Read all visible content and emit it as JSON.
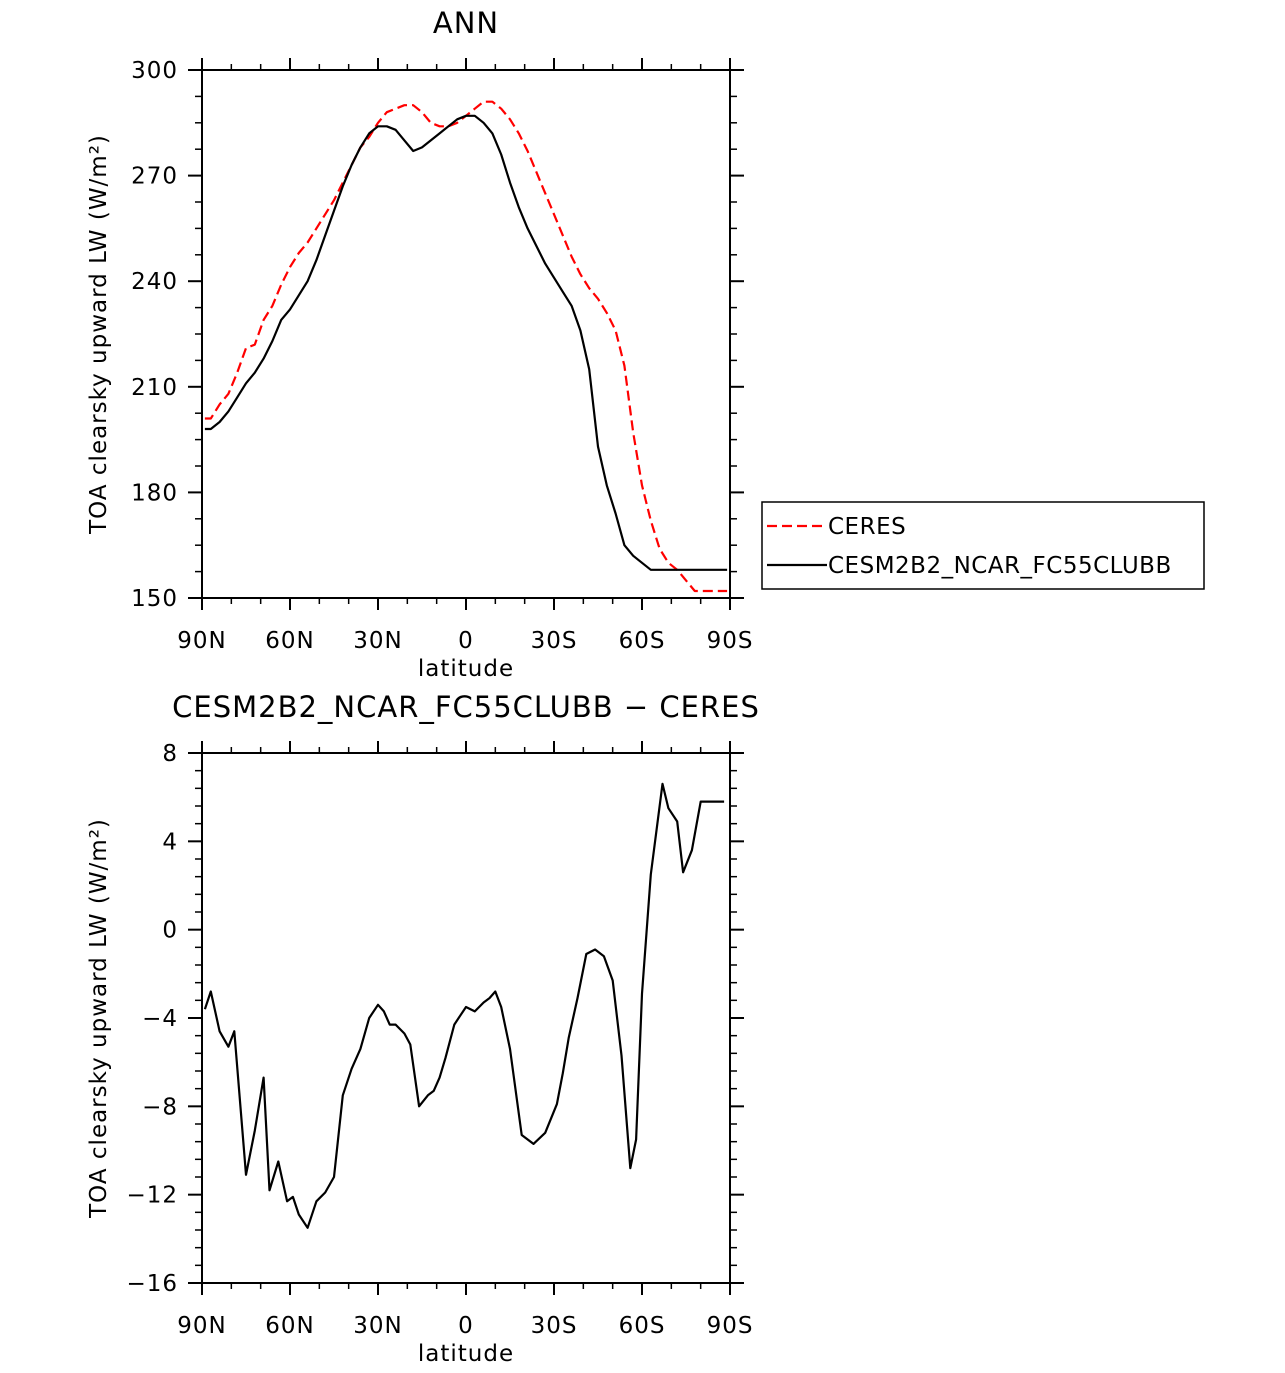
{
  "chart_data": [
    {
      "type": "line",
      "title": "ANN",
      "xlabel": "latitude",
      "ylabel": "TOA clearsky upward LW (W/m²)",
      "xlim": [
        90,
        -90
      ],
      "ylim": [
        150,
        300
      ],
      "xticks": [
        90,
        60,
        30,
        0,
        -30,
        -60,
        -90
      ],
      "xtick_labels": [
        "90N",
        "60N",
        "30N",
        "0",
        "30S",
        "60S",
        "90S"
      ],
      "yticks": [
        150,
        180,
        210,
        240,
        270,
        300
      ],
      "ytick_labels": [
        "150",
        "180",
        "210",
        "240",
        "270",
        "300"
      ],
      "legend_position": "right",
      "series": [
        {
          "name": "CERES",
          "color": "#ff0000",
          "dash": "dashed",
          "x": [
            89,
            87,
            84,
            81,
            78,
            75,
            72,
            69,
            66,
            63,
            60,
            57,
            54,
            51,
            48,
            45,
            42,
            39,
            36,
            33,
            30,
            27,
            24,
            21,
            18,
            15,
            12,
            9,
            6,
            3,
            0,
            -3,
            -6,
            -9,
            -12,
            -15,
            -18,
            -21,
            -24,
            -27,
            -30,
            -33,
            -36,
            -39,
            -42,
            -45,
            -48,
            -51,
            -54,
            -57,
            -60,
            -63,
            -66,
            -69,
            -72,
            -75,
            -78,
            -81,
            -84,
            -87,
            -89
          ],
          "y": [
            201,
            201,
            205,
            208,
            214,
            221,
            222,
            229,
            233,
            239,
            244,
            248,
            251,
            255,
            259,
            263,
            268,
            273,
            278,
            281,
            285,
            288,
            289,
            290,
            290,
            288,
            285,
            284,
            284,
            285,
            287,
            289,
            291,
            291,
            289,
            286,
            282,
            277,
            271,
            265,
            259,
            253,
            247,
            242,
            238,
            235,
            231,
            226,
            216,
            197,
            182,
            172,
            164,
            160,
            158,
            155,
            152,
            152,
            152,
            152,
            152
          ]
        },
        {
          "name": "CESM2B2_NCAR_FC55CLUBB",
          "color": "#000000",
          "dash": "solid",
          "x": [
            89,
            87,
            84,
            81,
            78,
            75,
            72,
            69,
            66,
            63,
            60,
            57,
            54,
            51,
            48,
            45,
            42,
            39,
            36,
            33,
            30,
            27,
            24,
            21,
            18,
            15,
            12,
            9,
            6,
            3,
            0,
            -3,
            -6,
            -9,
            -12,
            -15,
            -18,
            -21,
            -24,
            -27,
            -30,
            -33,
            -36,
            -39,
            -42,
            -45,
            -48,
            -51,
            -54,
            -57,
            -60,
            -63,
            -66,
            -69,
            -72,
            -75,
            -78,
            -81,
            -84,
            -87,
            -89
          ],
          "y": [
            198,
            198,
            200,
            203,
            207,
            211,
            214,
            218,
            223,
            229,
            232,
            236,
            240,
            246,
            253,
            260,
            267,
            273,
            278,
            282,
            284,
            284,
            283,
            280,
            277,
            278,
            280,
            282,
            284,
            286,
            287,
            287,
            285,
            282,
            276,
            268,
            261,
            255,
            250,
            245,
            241,
            237,
            233,
            226,
            215,
            193,
            182,
            174,
            165,
            162,
            160,
            158,
            158,
            158,
            158,
            158,
            158,
            158,
            158,
            158,
            158
          ]
        }
      ]
    },
    {
      "type": "line",
      "title": "CESM2B2_NCAR_FC55CLUBB − CERES",
      "xlabel": "latitude",
      "ylabel": "TOA clearsky upward LW (W/m²)",
      "xlim": [
        90,
        -90
      ],
      "ylim": [
        -16,
        8
      ],
      "xticks": [
        90,
        60,
        30,
        0,
        -30,
        -60,
        -90
      ],
      "xtick_labels": [
        "90N",
        "60N",
        "30N",
        "0",
        "30S",
        "60S",
        "90S"
      ],
      "yticks": [
        -16,
        -12,
        -8,
        -4,
        0,
        4,
        8
      ],
      "ytick_labels": [
        "−16",
        "−12",
        "−8",
        "−4",
        "0",
        "4",
        "8"
      ],
      "series": [
        {
          "color": "#000000",
          "dash": "solid",
          "x": [
            89,
            87,
            84,
            81,
            79,
            75,
            72,
            69,
            67,
            64,
            61,
            59,
            57,
            54,
            51,
            48,
            45,
            42,
            39,
            36,
            33,
            30,
            28,
            26,
            24,
            21,
            19,
            16,
            13,
            11,
            9,
            7,
            4,
            2,
            0,
            -3,
            -6,
            -8,
            -10,
            -12,
            -15,
            -19,
            -23,
            -27,
            -31,
            -33,
            -35,
            -38,
            -41,
            -44,
            -47,
            -50,
            -53,
            -56,
            -58,
            -60,
            -63,
            -67,
            -69,
            -72,
            -74,
            -77,
            -80,
            -83,
            -86,
            -88
          ],
          "y": [
            -3.6,
            -2.8,
            -4.6,
            -5.3,
            -4.6,
            -11.1,
            -9.1,
            -6.7,
            -11.8,
            -10.5,
            -12.3,
            -12.1,
            -12.9,
            -13.5,
            -12.3,
            -11.9,
            -11.2,
            -7.5,
            -6.3,
            -5.4,
            -4.0,
            -3.4,
            -3.7,
            -4.3,
            -4.3,
            -4.7,
            -5.2,
            -8.0,
            -7.5,
            -7.3,
            -6.7,
            -5.8,
            -4.3,
            -3.9,
            -3.5,
            -3.7,
            -3.3,
            -3.1,
            -2.8,
            -3.5,
            -5.4,
            -9.3,
            -9.7,
            -9.2,
            -7.9,
            -6.5,
            -4.9,
            -3.1,
            -1.1,
            -0.9,
            -1.2,
            -2.3,
            -5.7,
            -10.8,
            -9.5,
            -2.9,
            2.5,
            6.6,
            5.5,
            4.9,
            2.6,
            3.6,
            5.8,
            5.8,
            5.8,
            5.8
          ]
        }
      ]
    }
  ]
}
